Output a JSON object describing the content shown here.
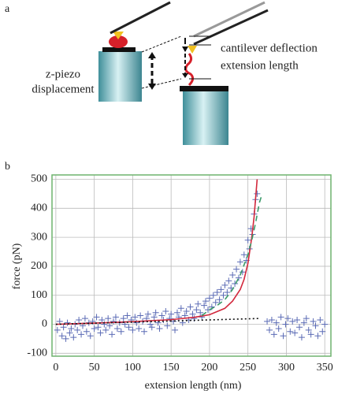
{
  "panels": {
    "a": "a",
    "b": "b"
  },
  "diagram": {
    "z_piezo_label": [
      "z-piezo",
      "displacement"
    ],
    "cantilever_deflection": "cantilever deflection",
    "extension_length": "extension length"
  },
  "chart_data": {
    "type": "scatter",
    "x_label": "extension length (nm)",
    "y_label": "force (pN)",
    "xlim": [
      -5,
      358
    ],
    "ylim": [
      -110,
      515
    ],
    "xticks": [
      0,
      50,
      100,
      150,
      200,
      250,
      300,
      350
    ],
    "yticks": [
      -100,
      0,
      100,
      200,
      300,
      400,
      500
    ],
    "grid": true,
    "frame_color": "#6fb36f",
    "series": [
      {
        "color": "#5b6bb5",
        "marker": "+",
        "x": [
          2,
          5,
          8,
          10,
          13,
          15,
          18,
          20,
          23,
          25,
          28,
          30,
          33,
          35,
          38,
          40,
          43,
          45,
          48,
          50,
          53,
          55,
          58,
          60,
          63,
          65,
          68,
          70,
          73,
          75,
          78,
          80,
          83,
          85,
          88,
          90,
          93,
          95,
          98,
          100,
          103,
          105,
          108,
          110,
          113,
          115,
          118,
          120,
          123,
          125,
          128,
          130,
          133,
          135,
          138,
          140,
          143,
          145,
          148,
          150,
          153,
          155,
          158,
          160,
          163,
          165,
          168,
          170,
          173,
          175,
          178,
          180,
          183,
          185,
          188,
          190,
          193,
          195,
          198,
          200,
          203,
          205,
          208,
          210,
          213,
          215,
          218,
          220,
          223,
          225,
          228,
          230,
          233,
          235,
          238,
          240,
          243,
          245,
          248,
          250,
          252,
          254,
          256,
          258,
          260,
          262,
          275,
          278,
          281,
          284,
          287,
          290,
          293,
          296,
          299,
          302,
          305,
          308,
          311,
          314,
          317,
          320,
          323,
          326,
          329,
          332,
          335,
          338,
          341,
          344,
          347,
          350
        ],
        "values": [
          -20,
          10,
          -40,
          -10,
          -50,
          5,
          -30,
          -15,
          -45,
          0,
          -20,
          15,
          -35,
          -5,
          20,
          -25,
          5,
          -40,
          10,
          -15,
          25,
          -10,
          -30,
          15,
          0,
          -20,
          20,
          -5,
          -35,
          10,
          25,
          -15,
          5,
          -25,
          20,
          0,
          30,
          -10,
          15,
          -20,
          25,
          5,
          -15,
          30,
          10,
          -25,
          20,
          35,
          0,
          -10,
          25,
          40,
          5,
          -15,
          30,
          15,
          45,
          -5,
          20,
          35,
          10,
          -20,
          40,
          25,
          55,
          5,
          30,
          45,
          15,
          60,
          35,
          20,
          50,
          70,
          40,
          25,
          65,
          80,
          50,
          90,
          60,
          100,
          75,
          110,
          85,
          120,
          100,
          135,
          110,
          150,
          125,
          170,
          140,
          190,
          160,
          215,
          180,
          240,
          220,
          290,
          260,
          330,
          310,
          380,
          430,
          450,
          10,
          -20,
          15,
          -35,
          5,
          -15,
          25,
          -40,
          0,
          20,
          -25,
          10,
          -30,
          15,
          -10,
          -45,
          5,
          20,
          -20,
          -35,
          10,
          -5,
          -40,
          15,
          -25,
          0
        ]
      },
      {
        "color": "#d2283c",
        "line": "solid",
        "x": [
          0,
          50,
          100,
          150,
          180,
          200,
          220,
          230,
          240,
          245,
          250,
          255,
          258,
          262
        ],
        "values": [
          0,
          4,
          9,
          16,
          24,
          33,
          55,
          80,
          120,
          155,
          210,
          300,
          370,
          500
        ]
      },
      {
        "color": "#3a9a6a",
        "line": "dashed",
        "x": [
          190,
          200,
          210,
          220,
          230,
          240,
          250,
          255,
          260,
          265,
          268
        ],
        "values": [
          30,
          50,
          65,
          85,
          120,
          170,
          240,
          290,
          350,
          420,
          445
        ]
      },
      {
        "color": "#111111",
        "line": "dotted",
        "x": [
          0,
          265
        ],
        "values": [
          0,
          20
        ]
      }
    ]
  }
}
